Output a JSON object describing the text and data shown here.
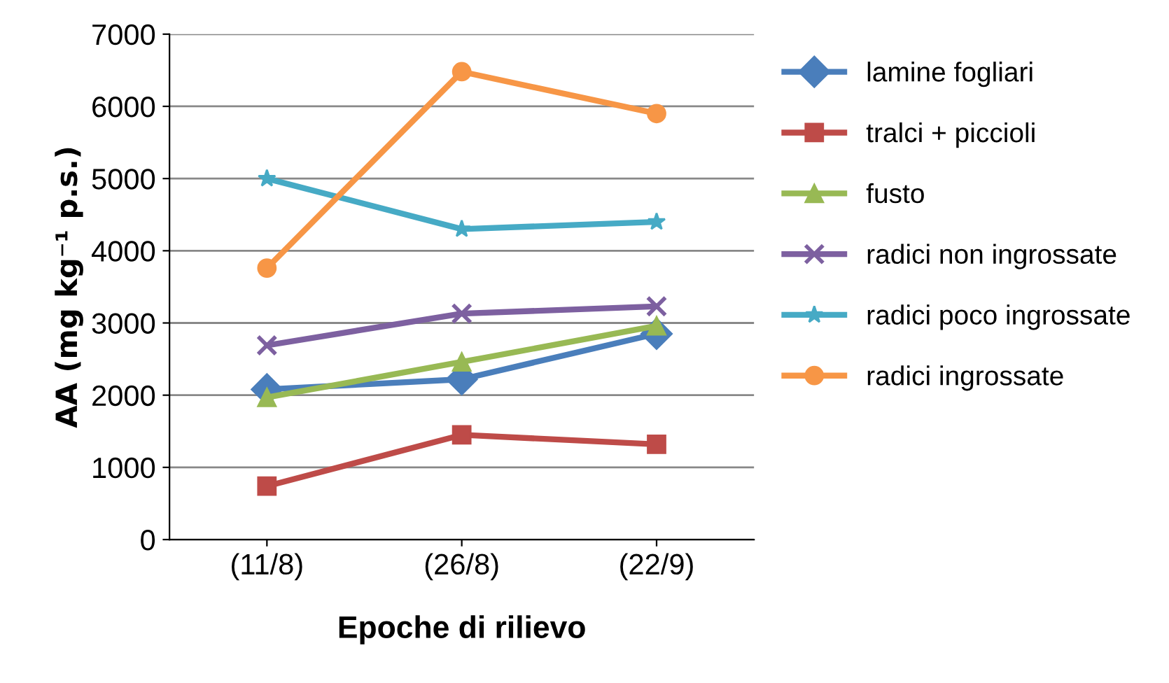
{
  "chart_data": {
    "type": "line",
    "xlabel": "Epoche di rilievo",
    "ylabel": "AA (mg kg⁻¹ p.s.)",
    "categories": [
      "(11/8)",
      "(26/8)",
      "(22/9)"
    ],
    "ylim": [
      0,
      7000
    ],
    "yticks": [
      0,
      1000,
      2000,
      3000,
      4000,
      5000,
      6000,
      7000
    ],
    "grid": "y",
    "legend": "right",
    "series": [
      {
        "name": "lamine fogliari",
        "color": "#4a7ebb",
        "marker": "diamond",
        "values": [
          2080,
          2220,
          2850
        ]
      },
      {
        "name": "tralci + piccioli",
        "color": "#be4b48",
        "marker": "square",
        "values": [
          740,
          1450,
          1320
        ]
      },
      {
        "name": "fusto",
        "color": "#98b954",
        "marker": "triangle",
        "values": [
          1970,
          2460,
          2960
        ]
      },
      {
        "name": "radici non ingrossate",
        "color": "#7d60a0",
        "marker": "cross",
        "values": [
          2690,
          3130,
          3230
        ]
      },
      {
        "name": "radici poco ingrossate",
        "color": "#46aac5",
        "marker": "star",
        "values": [
          5000,
          4300,
          4400
        ]
      },
      {
        "name": "radici ingrossate",
        "color": "#f79646",
        "marker": "circle",
        "values": [
          3760,
          6480,
          5900
        ]
      }
    ]
  }
}
